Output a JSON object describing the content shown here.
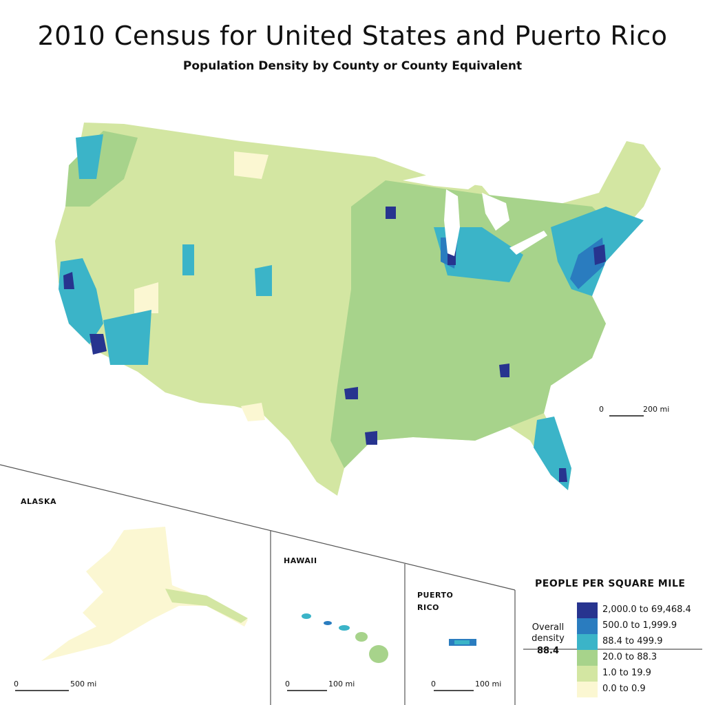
{
  "title": "2010 Census for United States and Puerto Rico",
  "subtitle": "Population Density by County or County Equivalent",
  "main_scale": {
    "zero": "0",
    "distance": "200 mi"
  },
  "insets": [
    {
      "label": "ALASKA",
      "scale": {
        "zero": "0",
        "distance": "500 mi"
      }
    },
    {
      "label": "HAWAII",
      "scale": {
        "zero": "0",
        "distance": "100 mi"
      }
    },
    {
      "label": "PUERTO RICO",
      "scale": {
        "zero": "0",
        "distance": "100 mi"
      }
    }
  ],
  "legend": {
    "title": "PEOPLE PER SQUARE MILE",
    "classes": [
      {
        "label": "2,000.0 to 69,468.4",
        "color": "#27348f"
      },
      {
        "label": "500.0 to 1,999.9",
        "color": "#2a7cbf"
      },
      {
        "label": "88.4 to 499.9",
        "color": "#3bb4c8"
      },
      {
        "label": "20.0 to 88.3",
        "color": "#a7d38b"
      },
      {
        "label": "1.0 to 19.9",
        "color": "#d3e6a2"
      },
      {
        "label": "0.0 to 0.9",
        "color": "#fbf7d2"
      }
    ],
    "overall": {
      "label": "Overall density",
      "value": "88.4"
    }
  }
}
